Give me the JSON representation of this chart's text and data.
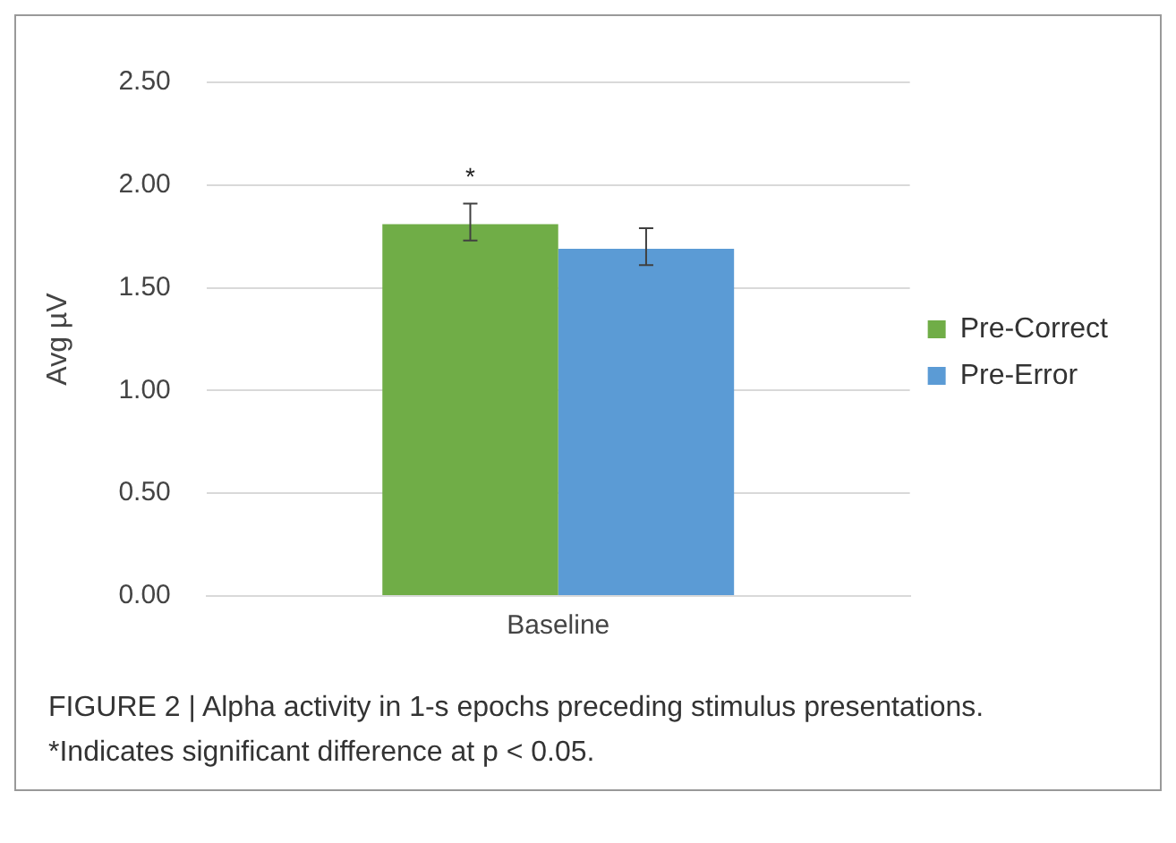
{
  "chart_data": {
    "type": "bar",
    "categories": [
      "Baseline"
    ],
    "ylabel": "Avg µV",
    "ylim": [
      0,
      2.5
    ],
    "yticks": [
      {
        "value": 0,
        "label": "0.00"
      },
      {
        "value": 0.5,
        "label": "0.50"
      },
      {
        "value": 1,
        "label": "1.00"
      },
      {
        "value": 1.5,
        "label": "1.50"
      },
      {
        "value": 2,
        "label": "2.00"
      },
      {
        "value": 2.5,
        "label": "2.50"
      }
    ],
    "grid": "y",
    "legend": "right",
    "series": [
      {
        "name": "Pre-Correct",
        "color": "#70ad47",
        "values": [
          1.81
        ],
        "errors": [
          [
            1.73,
            1.91
          ]
        ]
      },
      {
        "name": "Pre-Error",
        "color": "#5b9bd5",
        "values": [
          1.69
        ],
        "errors": [
          [
            1.61,
            1.79
          ]
        ]
      }
    ],
    "annotations": [
      "*",
      "FIGURE 2 | Alpha activity in 1-s epochs preceding stimulus presentations.",
      "*Indicates significant difference at p < 0.05."
    ]
  }
}
